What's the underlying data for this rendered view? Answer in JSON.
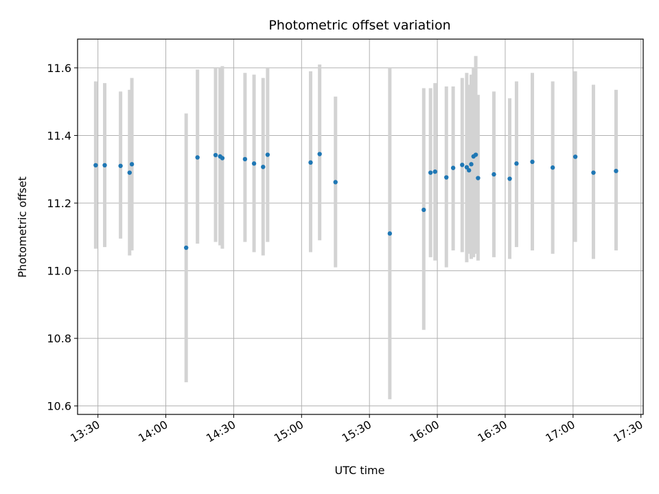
{
  "chart_data": {
    "type": "scatter",
    "title": "Photometric offset variation",
    "xlabel": "UTC time",
    "ylabel": "Photometric offset",
    "x_axis_type": "time",
    "xlim": [
      "13:21",
      "17:31"
    ],
    "ylim": [
      10.575,
      11.685
    ],
    "grid": true,
    "x_tick_labels": [
      "13:30",
      "14:00",
      "14:30",
      "15:00",
      "15:30",
      "16:00",
      "16:30",
      "17:00",
      "17:30"
    ],
    "y_ticks": [
      10.6,
      10.8,
      11.0,
      11.2,
      11.4,
      11.6
    ],
    "y_tick_labels": [
      "10.6",
      "10.8",
      "11.0",
      "11.2",
      "11.4",
      "11.6"
    ],
    "colors": {
      "point": "#1f77b4",
      "errorbar": "#d3d3d3",
      "grid": "#b0b0b0"
    },
    "points": [
      {
        "t": "13:29",
        "y": 11.312,
        "ylo": 11.065,
        "yhi": 11.56
      },
      {
        "t": "13:33",
        "y": 11.312,
        "ylo": 11.07,
        "yhi": 11.555
      },
      {
        "t": "13:40",
        "y": 11.31,
        "ylo": 11.095,
        "yhi": 11.53
      },
      {
        "t": "13:44",
        "y": 11.29,
        "ylo": 11.045,
        "yhi": 11.535
      },
      {
        "t": "13:45",
        "y": 11.315,
        "ylo": 11.06,
        "yhi": 11.57
      },
      {
        "t": "14:09",
        "y": 11.068,
        "ylo": 10.67,
        "yhi": 11.465
      },
      {
        "t": "14:14",
        "y": 11.335,
        "ylo": 11.08,
        "yhi": 11.595
      },
      {
        "t": "14:22",
        "y": 11.342,
        "ylo": 11.085,
        "yhi": 11.6
      },
      {
        "t": "14:24",
        "y": 11.338,
        "ylo": 11.075,
        "yhi": 11.6
      },
      {
        "t": "14:25",
        "y": 11.333,
        "ylo": 11.065,
        "yhi": 11.605
      },
      {
        "t": "14:35",
        "y": 11.33,
        "ylo": 11.085,
        "yhi": 11.585
      },
      {
        "t": "14:39",
        "y": 11.317,
        "ylo": 11.055,
        "yhi": 11.58
      },
      {
        "t": "14:43",
        "y": 11.307,
        "ylo": 11.045,
        "yhi": 11.57
      },
      {
        "t": "14:45",
        "y": 11.343,
        "ylo": 11.085,
        "yhi": 11.6
      },
      {
        "t": "15:04",
        "y": 11.32,
        "ylo": 11.055,
        "yhi": 11.59
      },
      {
        "t": "15:08",
        "y": 11.345,
        "ylo": 11.09,
        "yhi": 11.61
      },
      {
        "t": "15:15",
        "y": 11.262,
        "ylo": 11.01,
        "yhi": 11.515
      },
      {
        "t": "15:39",
        "y": 11.11,
        "ylo": 10.62,
        "yhi": 11.6
      },
      {
        "t": "15:54",
        "y": 11.18,
        "ylo": 10.825,
        "yhi": 11.54
      },
      {
        "t": "15:57",
        "y": 11.29,
        "ylo": 11.04,
        "yhi": 11.54
      },
      {
        "t": "15:59",
        "y": 11.293,
        "ylo": 11.03,
        "yhi": 11.555
      },
      {
        "t": "16:04",
        "y": 11.276,
        "ylo": 11.01,
        "yhi": 11.545
      },
      {
        "t": "16:07",
        "y": 11.304,
        "ylo": 11.06,
        "yhi": 11.545
      },
      {
        "t": "16:11",
        "y": 11.313,
        "ylo": 11.055,
        "yhi": 11.57
      },
      {
        "t": "16:13",
        "y": 11.306,
        "ylo": 11.025,
        "yhi": 11.585
      },
      {
        "t": "16:14",
        "y": 11.297,
        "ylo": 11.05,
        "yhi": 11.55
      },
      {
        "t": "16:15",
        "y": 11.315,
        "ylo": 11.035,
        "yhi": 11.58
      },
      {
        "t": "16:16",
        "y": 11.338,
        "ylo": 11.04,
        "yhi": 11.6
      },
      {
        "t": "16:17",
        "y": 11.343,
        "ylo": 11.05,
        "yhi": 11.635
      },
      {
        "t": "16:18",
        "y": 11.274,
        "ylo": 11.03,
        "yhi": 11.52
      },
      {
        "t": "16:25",
        "y": 11.285,
        "ylo": 11.04,
        "yhi": 11.53
      },
      {
        "t": "16:32",
        "y": 11.272,
        "ylo": 11.035,
        "yhi": 11.51
      },
      {
        "t": "16:35",
        "y": 11.317,
        "ylo": 11.07,
        "yhi": 11.56
      },
      {
        "t": "16:42",
        "y": 11.322,
        "ylo": 11.06,
        "yhi": 11.585
      },
      {
        "t": "16:51",
        "y": 11.305,
        "ylo": 11.05,
        "yhi": 11.56
      },
      {
        "t": "17:01",
        "y": 11.337,
        "ylo": 11.085,
        "yhi": 11.59
      },
      {
        "t": "17:09",
        "y": 11.29,
        "ylo": 11.035,
        "yhi": 11.55
      },
      {
        "t": "17:19",
        "y": 11.295,
        "ylo": 11.06,
        "yhi": 11.535
      }
    ]
  }
}
